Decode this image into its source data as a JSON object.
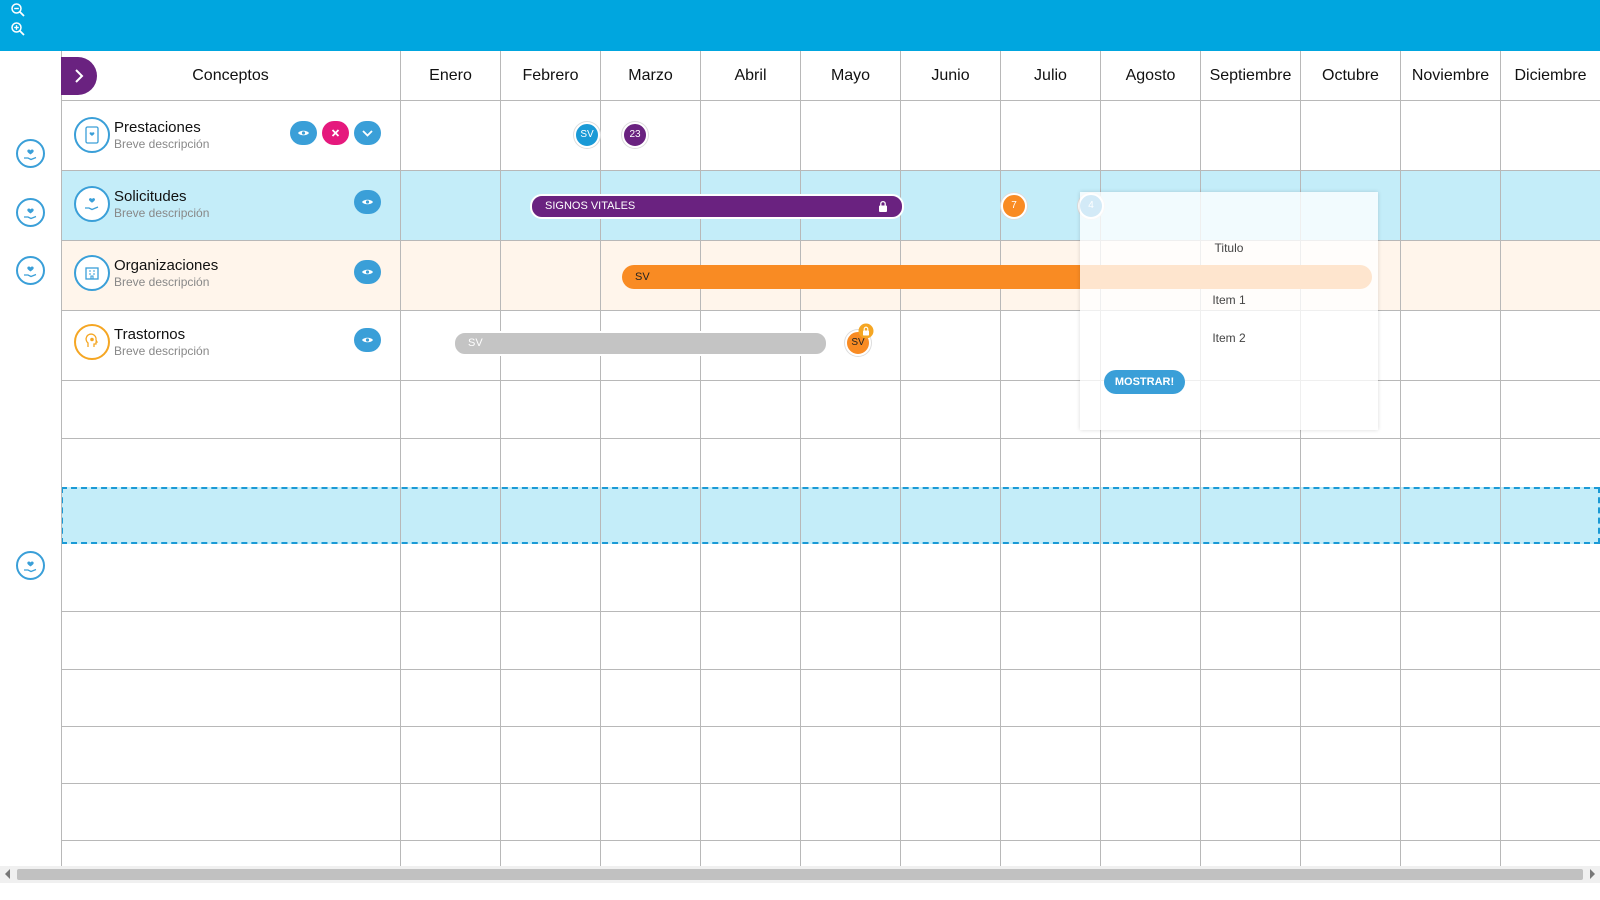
{
  "toolbar": {
    "zoom_out_icon": "zoom-out-icon",
    "zoom_in_icon": "zoom-in-icon"
  },
  "header": {
    "concepts_label": "Conceptos",
    "months": [
      "Enero",
      "Febrero",
      "Marzo",
      "Abril",
      "Mayo",
      "Junio",
      "Julio",
      "Agosto",
      "Septiembre",
      "Octubre",
      "Noviembre",
      "Diciembre"
    ]
  },
  "concepts": [
    {
      "name": "Prestaciones",
      "description": "Breve descripción",
      "icon": "document-heart-icon",
      "icon_color": "#3a9fd8"
    },
    {
      "name": "Solicitudes",
      "description": "Breve descripción",
      "icon": "hand-heart-icon",
      "icon_color": "#3a9fd8"
    },
    {
      "name": "Organizaciones",
      "description": "Breve descripción",
      "icon": "building-icon",
      "icon_color": "#3a9fd8"
    },
    {
      "name": "Trastornos",
      "description": "Breve descripción",
      "icon": "head-icon",
      "icon_color": "#f5a623"
    }
  ],
  "events": {
    "prestaciones_dot1": "SV",
    "prestaciones_dot2": "23",
    "solicitudes_bar": "SIGNOS VITALES",
    "solicitudes_dot": "7",
    "solicitudes_dot2": "4",
    "organizaciones_bar": "SV",
    "trastornos_bar": "SV",
    "trastornos_dot": "SV"
  },
  "popup": {
    "title": "Titulo",
    "item1": "Item 1",
    "item2": "Item 2",
    "button": "MOSTRAR!"
  },
  "colors": {
    "topbar": "#00a6df",
    "accent_blue": "#3a9fd8",
    "purple": "#6a2280",
    "pink": "#e5197d",
    "orange": "#f98b23",
    "gray_bar": "#c4c4c4",
    "row_highlight": "#c4edf9",
    "row_peach": "#fff5eb"
  }
}
